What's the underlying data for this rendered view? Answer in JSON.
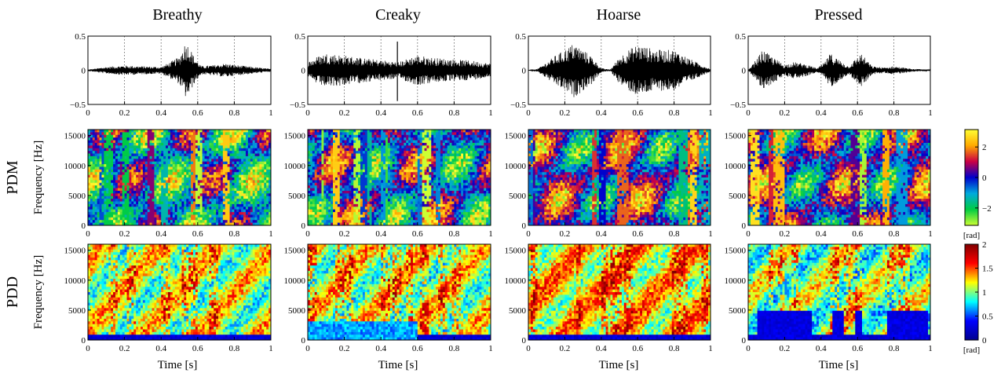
{
  "figure": {
    "columns": [
      "Breathy",
      "Creaky",
      "Hoarse",
      "Pressed"
    ],
    "row_labels": [
      "PDM",
      "PDD"
    ],
    "freq_ylabel": "Frequency [Hz]",
    "xlabel": "Time [s]"
  },
  "chart_data": [
    {
      "type": "line",
      "role": "waveforms",
      "panels": [
        "Breathy",
        "Creaky",
        "Hoarse",
        "Pressed"
      ],
      "xlim": [
        0,
        1
      ],
      "ylim": [
        -0.5,
        0.5
      ],
      "xticks": [
        0,
        0.2,
        0.4,
        0.6,
        0.8,
        1
      ],
      "xtick_labels": [
        "0",
        "0.2",
        "0.4",
        "0.6",
        "0.8",
        "1"
      ],
      "yticks": [
        -0.5,
        0,
        0.5
      ],
      "ytick_labels": [
        "−0.5",
        "0",
        "0.5"
      ],
      "grid": "vertical dotted",
      "envelopes": [
        {
          "t": [
            0,
            0.05,
            0.1,
            0.2,
            0.3,
            0.4,
            0.45,
            0.5,
            0.53,
            0.55,
            0.58,
            0.62,
            0.7,
            0.75,
            0.8,
            0.9,
            1.0
          ],
          "a": [
            0.01,
            0.03,
            0.05,
            0.07,
            0.06,
            0.05,
            0.12,
            0.2,
            0.4,
            0.38,
            0.2,
            0.06,
            0.08,
            0.1,
            0.08,
            0.05,
            0.02
          ]
        },
        {
          "t": [
            0,
            0.05,
            0.1,
            0.2,
            0.3,
            0.4,
            0.5,
            0.55,
            0.6,
            0.7,
            0.8,
            0.9,
            1.0
          ],
          "a": [
            0.12,
            0.2,
            0.25,
            0.22,
            0.18,
            0.15,
            0.12,
            0.18,
            0.22,
            0.18,
            0.16,
            0.14,
            0.1
          ]
        },
        {
          "t": [
            0,
            0.05,
            0.1,
            0.15,
            0.2,
            0.25,
            0.3,
            0.35,
            0.4,
            0.45,
            0.5,
            0.55,
            0.6,
            0.7,
            0.8,
            0.9,
            1.0
          ],
          "a": [
            0.0,
            0.02,
            0.12,
            0.22,
            0.3,
            0.4,
            0.3,
            0.2,
            0.03,
            0.01,
            0.2,
            0.3,
            0.38,
            0.3,
            0.3,
            0.15,
            0.02
          ]
        },
        {
          "t": [
            0,
            0.05,
            0.08,
            0.12,
            0.2,
            0.25,
            0.3,
            0.38,
            0.42,
            0.45,
            0.55,
            0.62,
            0.68,
            0.75,
            0.8,
            0.85,
            0.9,
            1.0
          ],
          "a": [
            0.0,
            0.18,
            0.3,
            0.22,
            0.08,
            0.12,
            0.1,
            0.03,
            0.12,
            0.25,
            0.06,
            0.25,
            0.06,
            0.04,
            0.06,
            0.04,
            0.02,
            0.01
          ]
        }
      ]
    },
    {
      "type": "heatmap",
      "role": "PDM",
      "panels": [
        "Breathy",
        "Creaky",
        "Hoarse",
        "Pressed"
      ],
      "xlim": [
        0,
        1
      ],
      "ylim": [
        0,
        16000
      ],
      "xticks": [
        0,
        0.2,
        0.4,
        0.6,
        0.8,
        1
      ],
      "xtick_labels": [
        "0",
        "0.2",
        "0.4",
        "0.6",
        "0.8",
        "1"
      ],
      "yticks": [
        0,
        5000,
        10000,
        15000
      ],
      "ytick_labels": [
        "0",
        "5000",
        "10000",
        "15000"
      ],
      "colorbar": {
        "range": [
          -3.1416,
          3.1416
        ],
        "ticks": [
          -2,
          0,
          2
        ],
        "tick_labels": [
          "−2",
          "0",
          "2"
        ],
        "unit": "[rad]",
        "colormap": "hsv cyclic",
        "colors": [
          "#ccff33",
          "#00cc44",
          "#00aadd",
          "#0000cc",
          "#cc0044",
          "#ffaa00",
          "#ffff33"
        ]
      }
    },
    {
      "type": "heatmap",
      "role": "PDD",
      "panels": [
        "Breathy",
        "Creaky",
        "Hoarse",
        "Pressed"
      ],
      "xlim": [
        0,
        1
      ],
      "ylim": [
        0,
        16000
      ],
      "xticks": [
        0,
        0.2,
        0.4,
        0.6,
        0.8,
        1
      ],
      "xtick_labels": [
        "0",
        "0.2",
        "0.4",
        "0.6",
        "0.8",
        "1"
      ],
      "yticks": [
        0,
        5000,
        10000,
        15000
      ],
      "ytick_labels": [
        "0",
        "5000",
        "10000",
        "15000"
      ],
      "colorbar": {
        "range": [
          0,
          2
        ],
        "ticks": [
          0,
          0.5,
          1,
          1.5,
          2
        ],
        "tick_labels": [
          "0",
          "0.5",
          "1",
          "1.5",
          "2"
        ],
        "unit": "[rad]",
        "colormap": "jet",
        "colors": [
          "#00008f",
          "#0000ff",
          "#00ffff",
          "#ffff00",
          "#ff0000",
          "#800000"
        ]
      }
    }
  ]
}
